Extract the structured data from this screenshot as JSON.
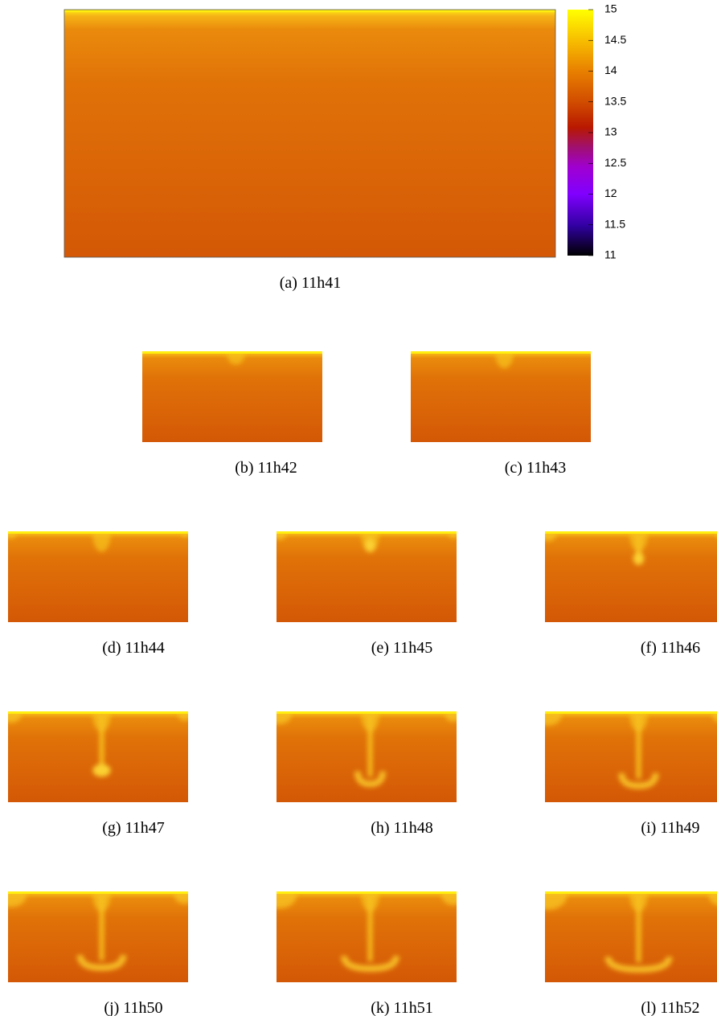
{
  "colorbar": {
    "lim": [
      11,
      15
    ],
    "ticks": [
      11,
      11.5,
      12,
      12.5,
      13,
      13.5,
      14,
      14.5,
      15
    ]
  },
  "panels": [
    {
      "caption": "(a) 11h41"
    },
    {
      "caption": "(b) 11h42"
    },
    {
      "caption": "(c) 11h43"
    },
    {
      "caption": "(d) 11h44"
    },
    {
      "caption": "(e) 11h45"
    },
    {
      "caption": "(f) 11h46"
    },
    {
      "caption": "(g) 11h47"
    },
    {
      "caption": "(h) 11h48"
    },
    {
      "caption": "(i) 11h49"
    },
    {
      "caption": "(j) 11h50"
    },
    {
      "caption": "(k) 11h51"
    },
    {
      "caption": "(l) 11h52"
    }
  ]
}
